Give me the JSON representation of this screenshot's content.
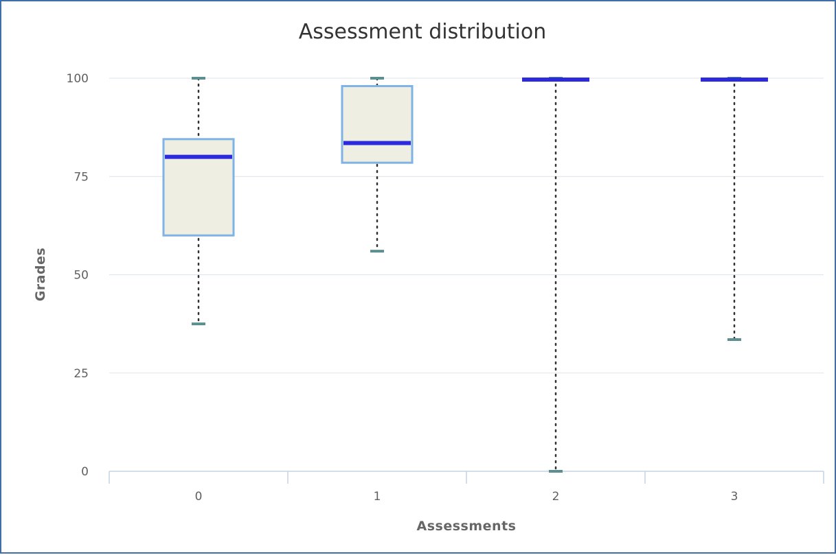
{
  "chart_data": {
    "type": "boxplot",
    "title": "Assessment distribution",
    "xlabel": "Assessments",
    "ylabel": "Grades",
    "ylim": [
      0,
      100
    ],
    "yticks": [
      0,
      25,
      50,
      75,
      100
    ],
    "categories": [
      "0",
      "1",
      "2",
      "3"
    ],
    "boxes": [
      {
        "category": "0",
        "min": 37.5,
        "q1": 60,
        "median": 80,
        "q3": 84.5,
        "max": 100
      },
      {
        "category": "1",
        "min": 56,
        "q1": 78.5,
        "median": 83.5,
        "q3": 98,
        "max": 100
      },
      {
        "category": "2",
        "min": 0,
        "q1": 100,
        "median": 100,
        "q3": 100,
        "max": 100
      },
      {
        "category": "3",
        "min": 33.5,
        "q1": 100,
        "median": 100,
        "q3": 100,
        "max": 100
      }
    ],
    "grid": true,
    "legend": "none",
    "colors": {
      "box_fill": "#efeee3",
      "box_stroke": "#7fb2e5",
      "median": "#2b2bdd",
      "whisker_cap": "#5c8f8f",
      "whisker_line": "#333333",
      "grid": "#dde3ea",
      "axis": "#c6d2e3"
    }
  }
}
